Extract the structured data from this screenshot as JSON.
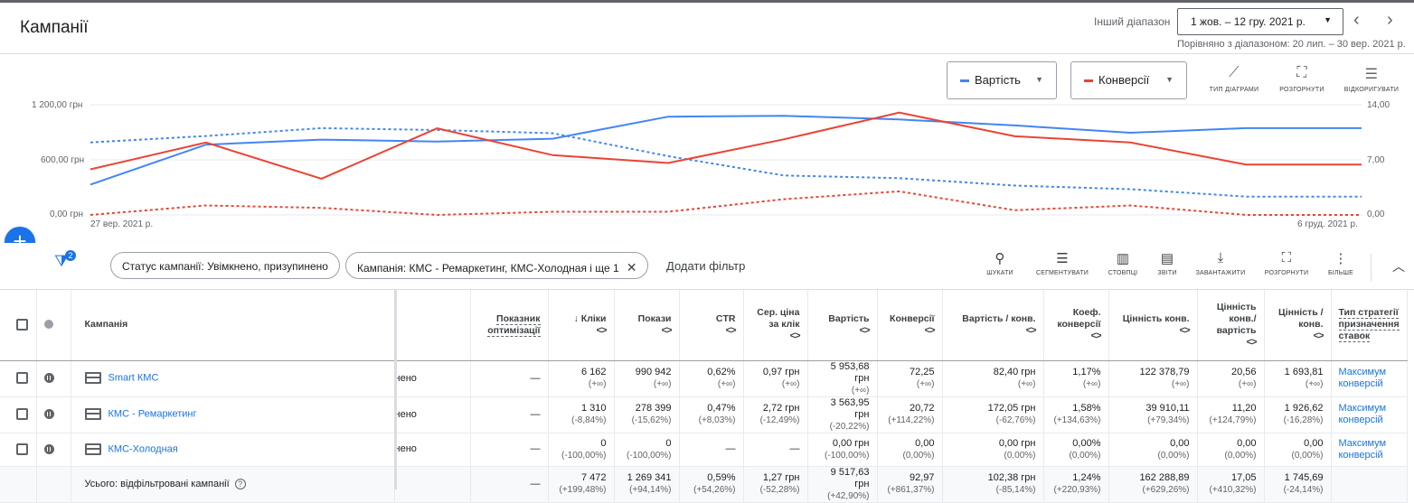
{
  "header": {
    "title": "Кампанії",
    "range_label": "Інший діапазон",
    "date_range": "1 жов. – 12 гру. 2021 р.",
    "compare_text": "Порівняно з діапазоном: 20 лип. – 30 вер. 2021 р."
  },
  "chart": {
    "metric1": {
      "label": "Вартість",
      "color": "#4285f4"
    },
    "metric2": {
      "label": "Конверсії",
      "color": "#ea4335"
    },
    "tools": [
      {
        "label": "ТИП ДІАГРАМИ",
        "icon": "chart-type-icon"
      },
      {
        "label": "РОЗГОРНУТИ",
        "icon": "expand-icon"
      },
      {
        "label": "ВІДКОРИГУВАТИ",
        "icon": "adjust-icon"
      }
    ],
    "y_left_ticks": [
      "1 200,00 грн",
      "600,00 грн",
      "0,00 грн"
    ],
    "y_right_ticks": [
      "14,00",
      "7,00",
      "0,00"
    ],
    "x_start": "27 вер. 2021 р.",
    "x_end": "6 груд. 2021 р."
  },
  "chart_data": {
    "type": "line",
    "x": [
      1,
      2,
      3,
      4,
      5,
      6,
      7,
      8,
      9,
      10,
      11,
      12
    ],
    "ylim_left": [
      0,
      1200
    ],
    "ylim_right": [
      0,
      14
    ],
    "series": [
      {
        "name": "Вартість",
        "axis": "left",
        "style": "solid",
        "color": "#4285f4",
        "values": [
          330,
          765,
          820,
          800,
          830,
          1070,
          1080,
          1040,
          975,
          895,
          945,
          null
        ]
      },
      {
        "name": "Вартість",
        "axis": "left",
        "style": "dotted",
        "color": "#4285f4",
        "values": [
          790,
          860,
          945,
          925,
          890,
          640,
          430,
          400,
          320,
          280,
          200,
          null
        ]
      },
      {
        "name": "Конверсії",
        "axis": "right",
        "style": "solid",
        "color": "#ea4335",
        "values": [
          5.8,
          9.2,
          4.6,
          11,
          7.6,
          6.6,
          9.6,
          13,
          10,
          9.2,
          6.4,
          null
        ]
      },
      {
        "name": "Конверсії",
        "axis": "right",
        "style": "dotted",
        "color": "#ea4335",
        "values": [
          0,
          1.2,
          0.9,
          0,
          0.4,
          0.4,
          2,
          3,
          0.6,
          1.2,
          0,
          null
        ]
      }
    ]
  },
  "filterbar": {
    "filter_count": "2",
    "chip1": "Статус кампанії: Увімкнено, призупинено",
    "chip2": "Кампанія: КМС - Ремаркетинг, КМС-Холодная і ще 1",
    "add_filter": "Додати фільтр",
    "tools": [
      {
        "label": "ШУКАТИ",
        "icon": "search-icon"
      },
      {
        "label": "СЕГМЕНТУВАТИ",
        "icon": "segment-icon"
      },
      {
        "label": "СТОВПЦІ",
        "icon": "columns-icon"
      },
      {
        "label": "ЗВІТИ",
        "icon": "reports-icon"
      },
      {
        "label": "ЗАВАНТАЖИТИ",
        "icon": "download-icon"
      },
      {
        "label": "РОЗГОРНУТИ",
        "icon": "expand-icon"
      },
      {
        "label": "БІЛЬШЕ",
        "icon": "more-icon"
      }
    ]
  },
  "table": {
    "headers": {
      "campaign": "Кампанія",
      "opt": "Показник оптимізації",
      "clicks": "↓ Кліки",
      "impr": "Покази",
      "ctr": "CTR",
      "cpc": "Сер. ціна за клік",
      "cost": "Вартість",
      "conv": "Конверсії",
      "cost_conv": "Вартість / конв.",
      "conv_rate": "Коеф. конверсії",
      "conv_value": "Цінність конв.",
      "value_cost": "Цінність конв./ вартість",
      "value_conv": "Цінність / конв.",
      "strategy": "Тип стратегії призначення ставок"
    },
    "sort_glyph": "<>",
    "rows": [
      {
        "name": "Smart КМС",
        "status": "нено",
        "opt": "—",
        "clicks": "6 162",
        "clicks_d": "(+∞)",
        "impr": "990 942",
        "impr_d": "(+∞)",
        "ctr": "0,62%",
        "ctr_d": "(+∞)",
        "cpc": "0,97 грн",
        "cpc_d": "(+∞)",
        "cost": "5 953,68 грн",
        "cost_d": "(+∞)",
        "conv": "72,25",
        "conv_d": "(+∞)",
        "cost_conv": "82,40 грн",
        "cost_conv_d": "(+∞)",
        "conv_rate": "1,17%",
        "conv_rate_d": "(+∞)",
        "conv_value": "122 378,79",
        "conv_value_d": "(+∞)",
        "value_cost": "20,56",
        "value_cost_d": "(+∞)",
        "value_conv": "1 693,81",
        "value_conv_d": "(+∞)",
        "strategy": "Максимум конверсій"
      },
      {
        "name": "КМС - Ремаркетинг",
        "status": "нено",
        "opt": "—",
        "clicks": "1 310",
        "clicks_d": "(-8,84%)",
        "impr": "278 399",
        "impr_d": "(-15,62%)",
        "ctr": "0,47%",
        "ctr_d": "(+8,03%)",
        "cpc": "2,72 грн",
        "cpc_d": "(-12,49%)",
        "cost": "3 563,95 грн",
        "cost_d": "(-20,22%)",
        "conv": "20,72",
        "conv_d": "(+114,22%)",
        "cost_conv": "172,05 грн",
        "cost_conv_d": "(-62,76%)",
        "conv_rate": "1,58%",
        "conv_rate_d": "(+134,63%)",
        "conv_value": "39 910,11",
        "conv_value_d": "(+79,34%)",
        "value_cost": "11,20",
        "value_cost_d": "(+124,79%)",
        "value_conv": "1 926,62",
        "value_conv_d": "(-16,28%)",
        "strategy": "Максимум конверсій"
      },
      {
        "name": "КМС-Холодная",
        "status": "нено",
        "opt": "—",
        "clicks": "0",
        "clicks_d": "(-100,00%)",
        "impr": "0",
        "impr_d": "(-100,00%)",
        "ctr": "—",
        "ctr_d": "",
        "cpc": "—",
        "cpc_d": "",
        "cost": "0,00 грн",
        "cost_d": "(-100,00%)",
        "conv": "0,00",
        "conv_d": "(0,00%)",
        "cost_conv": "0,00 грн",
        "cost_conv_d": "(0,00%)",
        "conv_rate": "0,00%",
        "conv_rate_d": "(0,00%)",
        "conv_value": "0,00",
        "conv_value_d": "(0,00%)",
        "value_cost": "0,00",
        "value_cost_d": "(0,00%)",
        "value_conv": "0,00",
        "value_conv_d": "(0,00%)",
        "strategy": "Максимум конверсій"
      }
    ],
    "total": {
      "label": "Усього: відфільтровані кампанії",
      "opt": "—",
      "clicks": "7 472",
      "clicks_d": "(+199,48%)",
      "impr": "1 269 341",
      "impr_d": "(+94,14%)",
      "ctr": "0,59%",
      "ctr_d": "(+54,26%)",
      "cpc": "1,27 грн",
      "cpc_d": "(-52,28%)",
      "cost": "9 517,63 грн",
      "cost_d": "(+42,90%)",
      "conv": "92,97",
      "conv_d": "(+861,37%)",
      "cost_conv": "102,38 грн",
      "cost_conv_d": "(-85,14%)",
      "conv_rate": "1,24%",
      "conv_rate_d": "(+220,93%)",
      "conv_value": "162 288,89",
      "conv_value_d": "(+629,26%)",
      "value_cost": "17,05",
      "value_cost_d": "(+410,32%)",
      "value_conv": "1 745,69",
      "value_conv_d": "(-24,14%)"
    }
  }
}
